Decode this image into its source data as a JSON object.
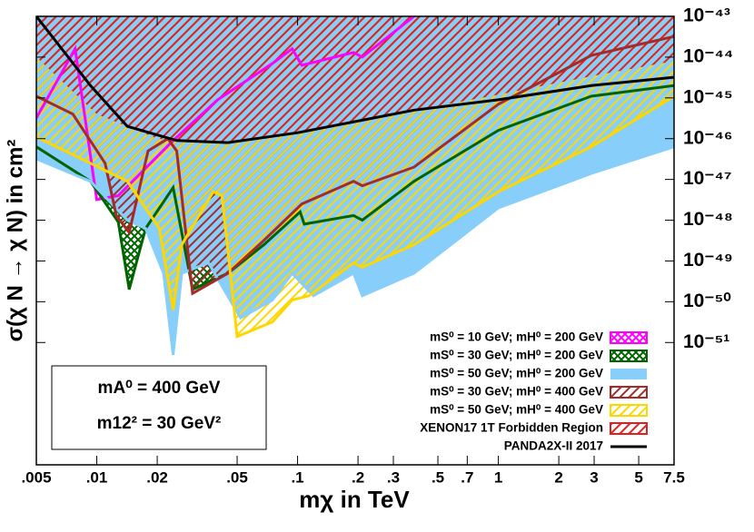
{
  "chart_data": {
    "type": "line",
    "x_label": "mχ  in TeV",
    "y_label": "σ(χ N → χ N) in cm²",
    "annotations": [
      "mA⁰ = 400 GeV",
      "m12² = 30 GeV²"
    ],
    "xscale": "log",
    "yscale": "log",
    "legend": "lower right",
    "xlim": [
      0.005,
      7.5
    ],
    "ylim": [
      1e-54,
      1e-43
    ],
    "xticks": [
      {
        "value": 0.005,
        "label": ".005"
      },
      {
        "value": 0.01,
        "label": ".01"
      },
      {
        "value": 0.02,
        "label": ".02"
      },
      {
        "value": 0.05,
        "label": ".05"
      },
      {
        "value": 0.1,
        "label": ".1"
      },
      {
        "value": 0.2,
        "label": ".2"
      },
      {
        "value": 0.3,
        "label": ".3"
      },
      {
        "value": 0.5,
        "label": ".5"
      },
      {
        "value": 0.7,
        "label": ".7"
      },
      1,
      2,
      3,
      5,
      7.5
    ],
    "yticks": [
      {
        "value": 1e-43,
        "label": "10⁻⁴³"
      },
      {
        "value": 1e-44,
        "label": "10⁻⁴⁴"
      },
      {
        "value": 1e-45,
        "label": "10⁻⁴⁵"
      },
      {
        "value": 1e-46,
        "label": "10⁻⁴⁶"
      },
      {
        "value": 1e-47,
        "label": "10⁻⁴⁷"
      },
      {
        "value": 1e-48,
        "label": "10⁻⁴⁸"
      },
      {
        "value": 1e-49,
        "label": "10⁻⁴⁹"
      },
      {
        "value": 1e-50,
        "label": "10⁻⁵⁰"
      },
      {
        "value": 1e-51,
        "label": "10⁻⁵¹"
      }
    ],
    "series": [
      {
        "name": "mS⁰ = 10 GeV; mH⁰ = 200 GeV",
        "color": "#ff00ff",
        "fill": "crosshatch",
        "x": [
          0.005,
          0.0078,
          0.01,
          0.0128,
          0.024,
          0.04,
          0.075,
          0.094,
          0.105,
          0.19,
          0.21,
          0.38
        ],
        "values": [
          3.2e-46,
          1.6e-44,
          3.2e-48,
          4e-48,
          9e-47,
          9e-46,
          7e-45,
          1.6e-44,
          6.3e-45,
          1.3e-44,
          1e-44,
          1e-43
        ]
      },
      {
        "name": "mS⁰ = 30 GeV; mH⁰ = 200 GeV",
        "color": "#006400",
        "fill": "crosshatch",
        "x": [
          0.005,
          0.0093,
          0.0128,
          0.0145,
          0.0175,
          0.024,
          0.03,
          0.045,
          0.068,
          0.103,
          0.108,
          0.19,
          0.21,
          0.38,
          1,
          2.9,
          7.5
        ],
        "values": [
          6.3e-47,
          9e-48,
          9e-49,
          2e-50,
          6.3e-49,
          6.3e-48,
          2e-50,
          5e-50,
          2.5e-49,
          1.6e-48,
          8e-49,
          1.3e-48,
          1e-48,
          9e-48,
          1.6e-46,
          1.1e-45,
          2e-45
        ]
      },
      {
        "name": "mS⁰ = 50 GeV; mH⁰ = 200 GeV",
        "color": "#87cefa",
        "fill": "solid",
        "x": [
          0.005,
          0.0093,
          0.0142,
          0.0175,
          0.0215,
          0.024,
          0.0265,
          0.036,
          0.052,
          0.075,
          0.094,
          0.12,
          0.19,
          0.21,
          0.38,
          1,
          2.9,
          7.5
        ],
        "values": [
          3.2e-47,
          9e-48,
          1e-48,
          6.3e-49,
          5e-50,
          5e-52,
          5e-50,
          9e-50,
          4e-51,
          1.1e-50,
          5e-50,
          1.4e-50,
          5e-50,
          1.4e-50,
          5e-50,
          2e-48,
          1.4e-47,
          6.3e-47
        ]
      },
      {
        "name": "mS⁰ = 30 GeV; mH⁰ = 400 GeV",
        "color": "#a52a2a",
        "fill": "hatch",
        "x": [
          0.005,
          0.0076,
          0.011,
          0.0125,
          0.0145,
          0.018,
          0.0226,
          0.025,
          0.03,
          0.045,
          0.068,
          0.105,
          0.19,
          0.21,
          0.38,
          1,
          2.9,
          7.5
        ],
        "values": [
          1.1e-45,
          4e-46,
          2.5e-47,
          1.3e-48,
          5e-49,
          5e-47,
          1e-46,
          5e-47,
          1.6e-50,
          5e-50,
          3.2e-49,
          2.5e-48,
          9e-48,
          7e-48,
          2e-47,
          7e-46,
          1.1e-44,
          3.2e-44
        ]
      },
      {
        "name": "mS⁰ = 50 GeV; mH⁰ = 400 GeV",
        "color": "#ffd700",
        "fill": "hatch",
        "x": [
          0.005,
          0.0093,
          0.0142,
          0.0205,
          0.024,
          0.0265,
          0.038,
          0.042,
          0.05,
          0.075,
          0.094,
          0.114,
          0.19,
          0.21,
          0.38,
          1,
          2.9,
          7.5
        ],
        "values": [
          1.1e-46,
          2.5e-47,
          9e-48,
          6.3e-49,
          6.3e-51,
          2.5e-49,
          5e-48,
          4e-48,
          1.4e-51,
          3.2e-51,
          1.1e-50,
          1.4e-50,
          9e-50,
          7e-50,
          2.5e-49,
          5e-48,
          6.3e-47,
          1.1e-45
        ]
      },
      {
        "name": "XENON17 1T Forbidden Region",
        "color": "#e02020",
        "fill": "hatch",
        "x": [
          0.005,
          0.01,
          0.02,
          0.03,
          0.05,
          0.1,
          0.3,
          1,
          3,
          7.5
        ],
        "values": [
          1e-44,
          4e-46,
          1e-46,
          8e-47,
          9e-47,
          1.5e-46,
          4e-46,
          1.2e-45,
          3.5e-45,
          8e-45
        ]
      },
      {
        "name": "PANDA2X-II 2017",
        "color": "#000000",
        "fill": "none",
        "x": [
          0.005,
          0.0093,
          0.0142,
          0.025,
          0.045,
          0.1,
          0.38,
          1,
          2.9,
          7.5
        ],
        "values": [
          1e-43,
          2e-45,
          2e-46,
          9e-47,
          8e-47,
          1.4e-46,
          5e-46,
          9e-46,
          2e-45,
          3.2e-45
        ]
      }
    ]
  }
}
